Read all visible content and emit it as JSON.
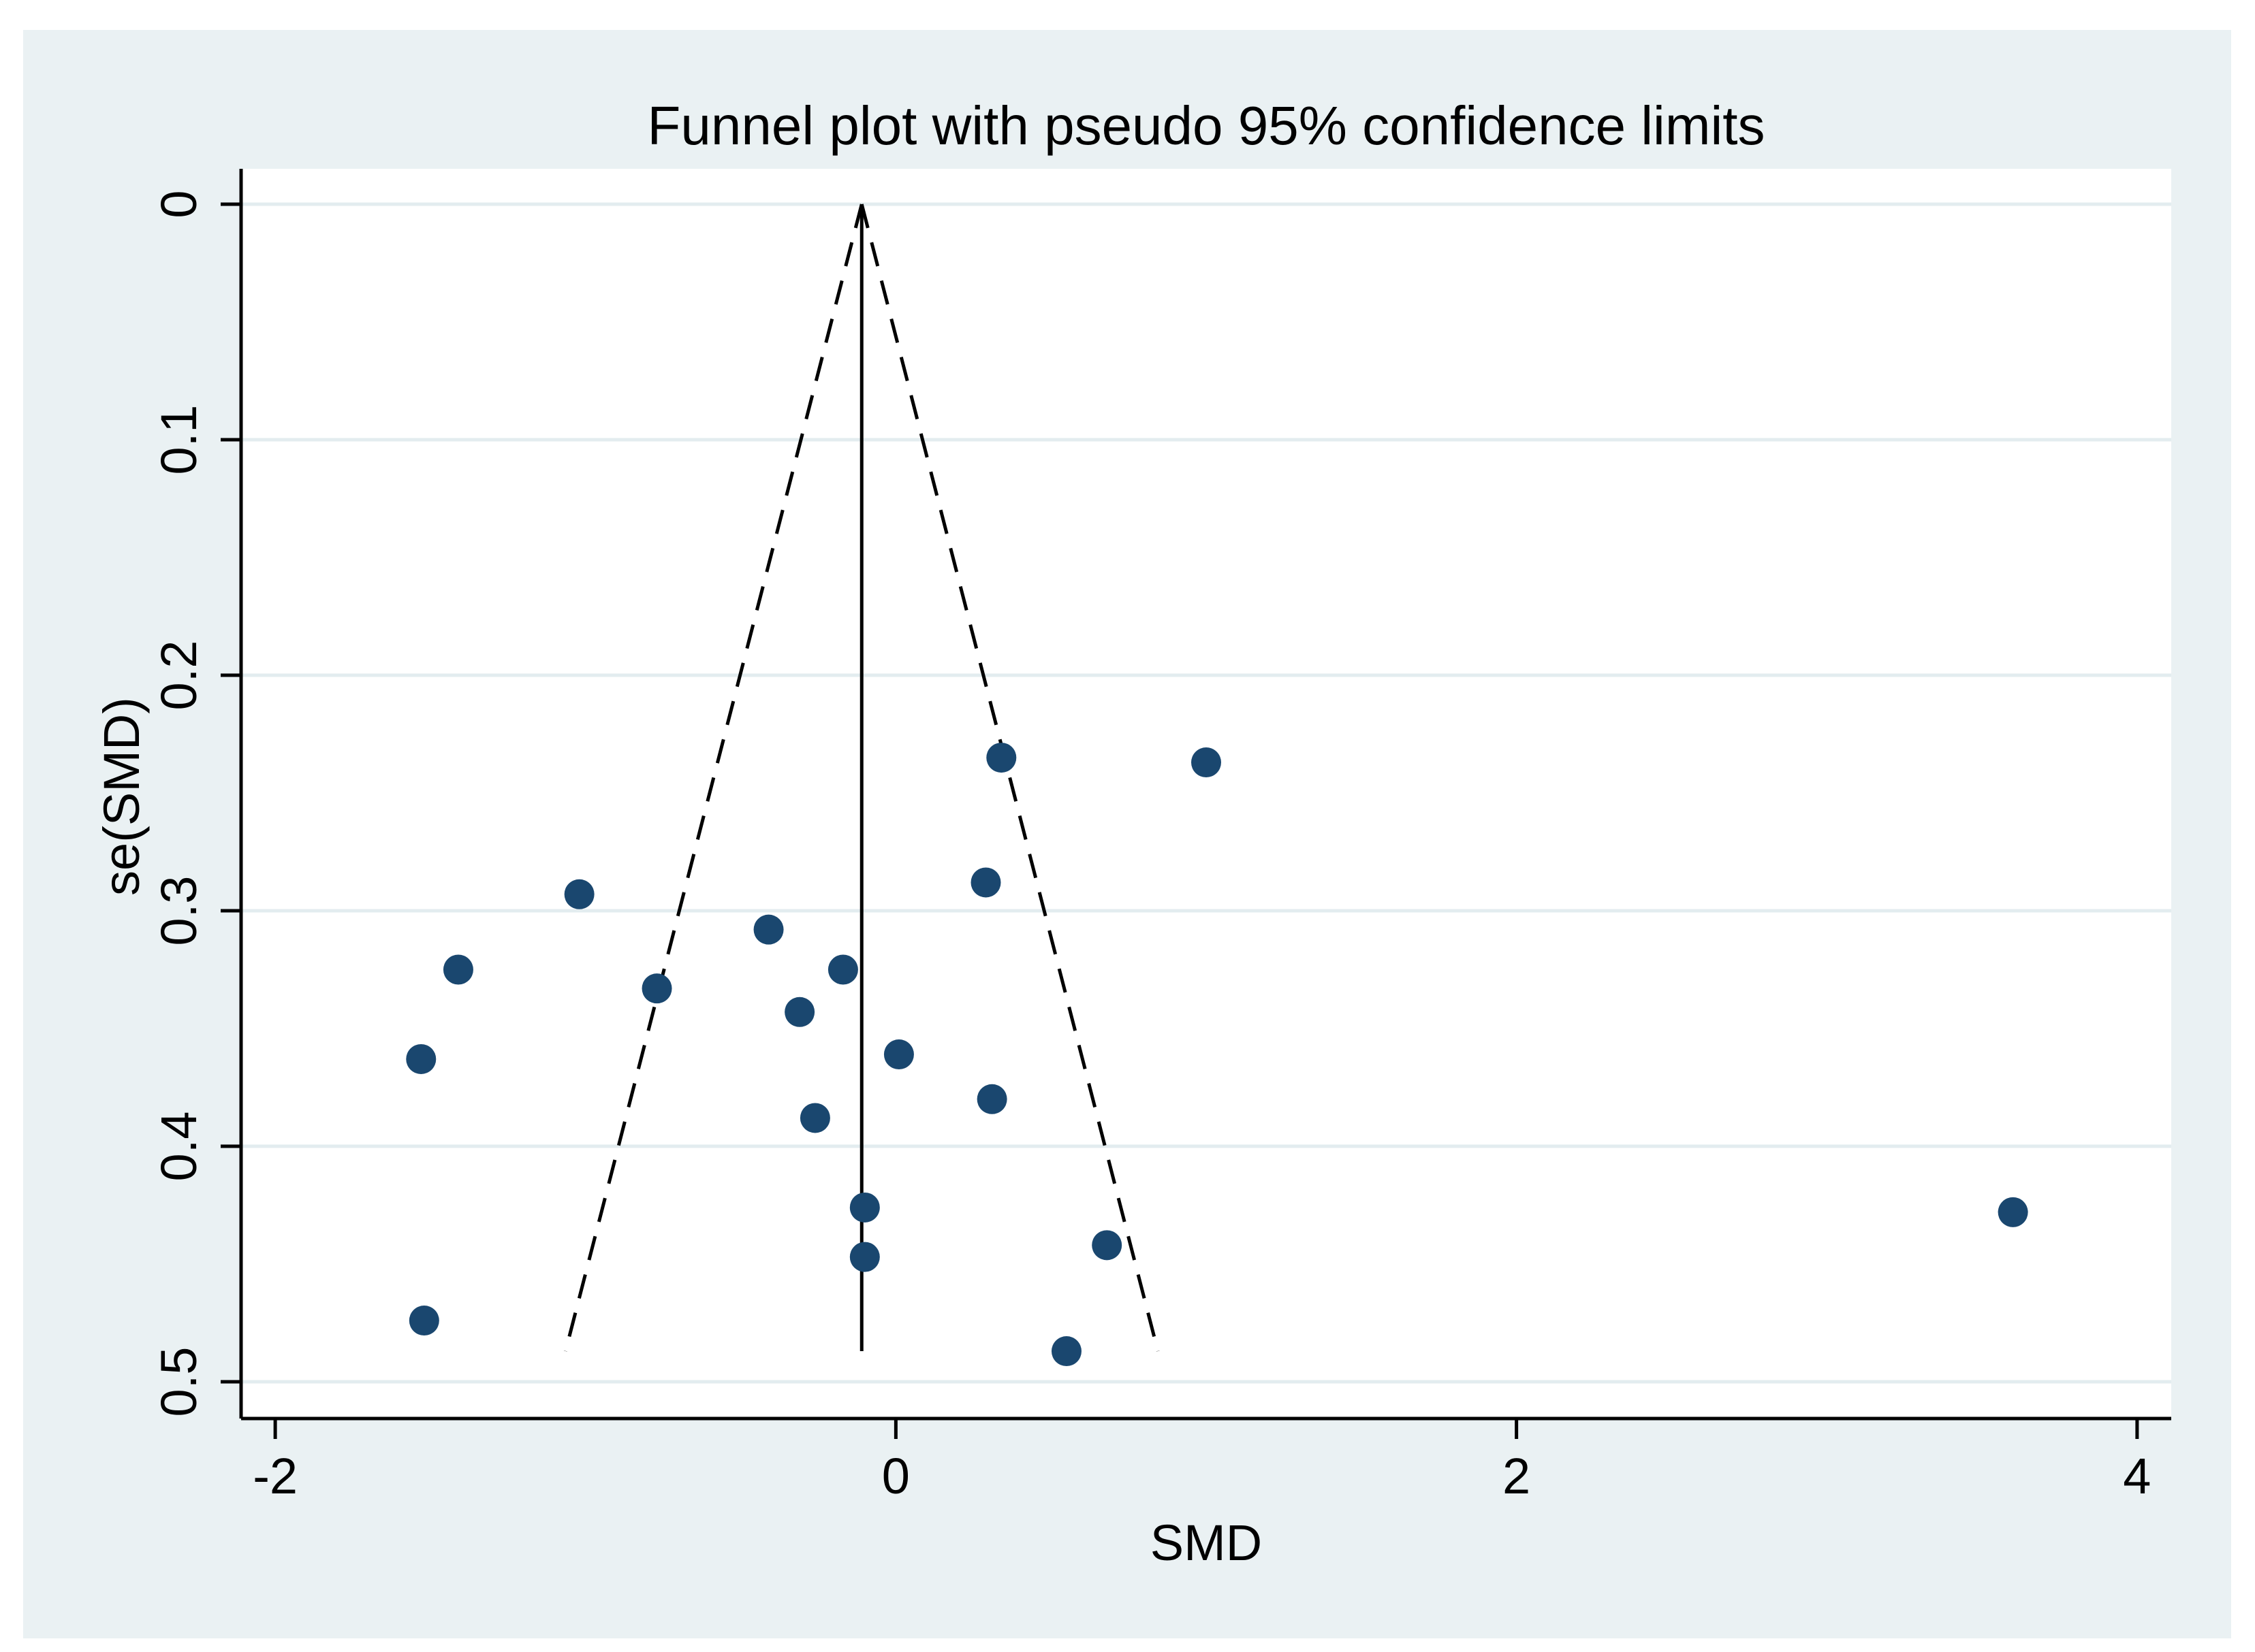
{
  "chart_data": {
    "type": "scatter",
    "title": "Funnel plot with pseudo 95% confidence limits",
    "xlabel": "SMD",
    "ylabel": "se(SMD)",
    "xlim": [
      -2.11,
      4.11
    ],
    "ylim": [
      0,
      0.5
    ],
    "y_reversed": true,
    "x_ticks": [
      -2,
      0,
      2,
      4
    ],
    "x_tick_labels": [
      "-2",
      "0",
      "2",
      "4"
    ],
    "y_ticks": [
      0,
      0.1,
      0.2,
      0.3,
      0.4,
      0.5
    ],
    "y_tick_labels": [
      "0",
      "0.1",
      "0.2",
      "0.3",
      "0.4",
      "0.5"
    ],
    "grid": true,
    "pooled_estimate": -0.11,
    "se_max_line": 0.487,
    "confidence_z": 1.96,
    "series": [
      {
        "name": "studies",
        "points": [
          {
            "x": 0.34,
            "y": 0.235
          },
          {
            "x": 1.0,
            "y": 0.237
          },
          {
            "x": 0.29,
            "y": 0.288
          },
          {
            "x": -1.02,
            "y": 0.293
          },
          {
            "x": -0.41,
            "y": 0.308
          },
          {
            "x": -1.41,
            "y": 0.325
          },
          {
            "x": -0.17,
            "y": 0.325
          },
          {
            "x": -0.77,
            "y": 0.333
          },
          {
            "x": -0.31,
            "y": 0.343
          },
          {
            "x": -1.53,
            "y": 0.363
          },
          {
            "x": 0.01,
            "y": 0.361
          },
          {
            "x": 0.31,
            "y": 0.38
          },
          {
            "x": -0.26,
            "y": 0.388
          },
          {
            "x": -0.1,
            "y": 0.426
          },
          {
            "x": 3.6,
            "y": 0.428
          },
          {
            "x": 0.68,
            "y": 0.442
          },
          {
            "x": -0.1,
            "y": 0.447
          },
          {
            "x": -1.52,
            "y": 0.474
          },
          {
            "x": 0.55,
            "y": 0.487
          }
        ]
      }
    ],
    "colors": {
      "outer_bg": "#eaf1f3",
      "plot_bg": "#ffffff",
      "grid": "#e3ecef",
      "marker": "#1a476f",
      "line": "#000000"
    }
  }
}
